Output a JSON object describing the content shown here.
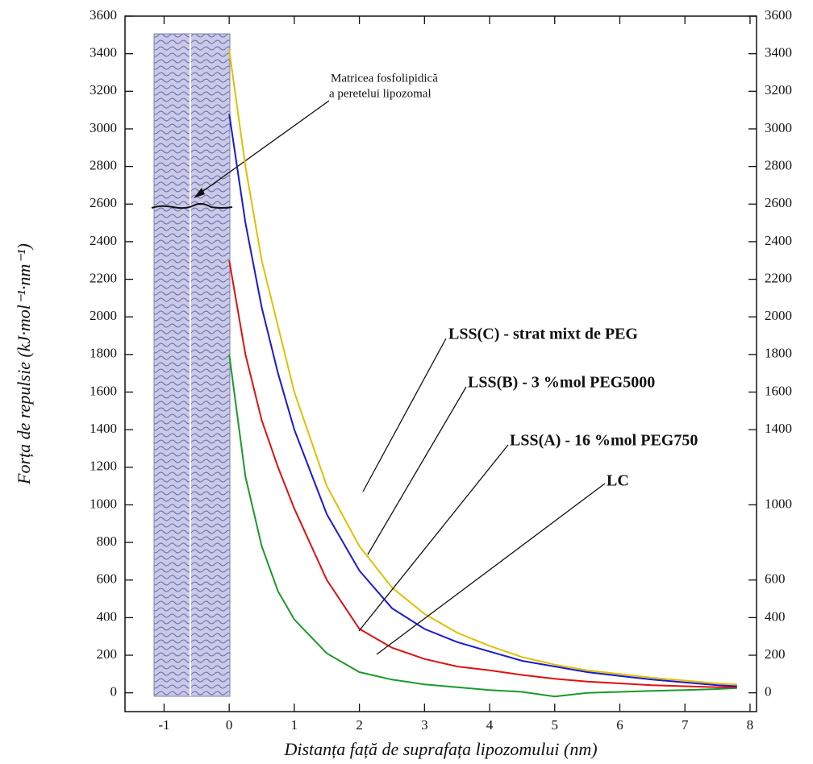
{
  "chart_data": {
    "type": "line",
    "x_label": "Distanța față de suprafața lipozomului (nm)",
    "y_label": "Forța de repulsie (kJ·mol⁻¹·nm⁻¹)",
    "annotation": [
      "Matricea fosfolipidică",
      "a peretelui lipozomal"
    ],
    "x": [
      0,
      0.25,
      0.5,
      0.75,
      1,
      1.5,
      2,
      2.5,
      3,
      3.5,
      4,
      4.5,
      5,
      5.5,
      6,
      6.5,
      7,
      7.5,
      7.8
    ],
    "series": [
      {
        "name": "LC",
        "color": "#1a9a2a",
        "values": [
          1800,
          1150,
          780,
          540,
          390,
          210,
          110,
          70,
          45,
          30,
          15,
          5,
          -20,
          0,
          5,
          10,
          15,
          20,
          25
        ]
      },
      {
        "name": "LSS(A) - 16 %mol PEG750",
        "color": "#e01010",
        "values": [
          2300,
          1800,
          1450,
          1200,
          980,
          600,
          340,
          240,
          180,
          140,
          120,
          95,
          75,
          60,
          50,
          40,
          35,
          30,
          30
        ]
      },
      {
        "name": "LSS(B) - 3 %mol PEG5000",
        "color": "#1a1ad0",
        "values": [
          3080,
          2500,
          2050,
          1700,
          1400,
          950,
          650,
          450,
          340,
          270,
          220,
          170,
          140,
          110,
          90,
          70,
          55,
          40,
          35
        ]
      },
      {
        "name": "LSS(C) - strat mixt de PEG",
        "color": "#e0c000",
        "values": [
          3420,
          2800,
          2300,
          1950,
          1600,
          1100,
          780,
          560,
          420,
          320,
          250,
          190,
          150,
          120,
          100,
          80,
          65,
          50,
          45
        ]
      }
    ],
    "xlim": [
      -1.6,
      8.1
    ],
    "ylim": [
      -100,
      3600
    ],
    "y2lim": [
      -100,
      3600
    ],
    "xticks": [
      -1,
      0,
      1,
      2,
      3,
      4,
      5,
      6,
      7,
      8
    ],
    "yticks": [
      0,
      200,
      400,
      600,
      800,
      1000,
      1200,
      1400,
      1600,
      1800,
      2000,
      2200,
      2400,
      2600,
      2800,
      3000,
      3200,
      3400,
      3600
    ],
    "y2ticks": [
      0,
      200,
      400,
      600,
      1000,
      1400,
      1600,
      1800,
      2000,
      2200,
      2400,
      2600,
      2800,
      3000,
      3200,
      3400,
      3600
    ]
  }
}
